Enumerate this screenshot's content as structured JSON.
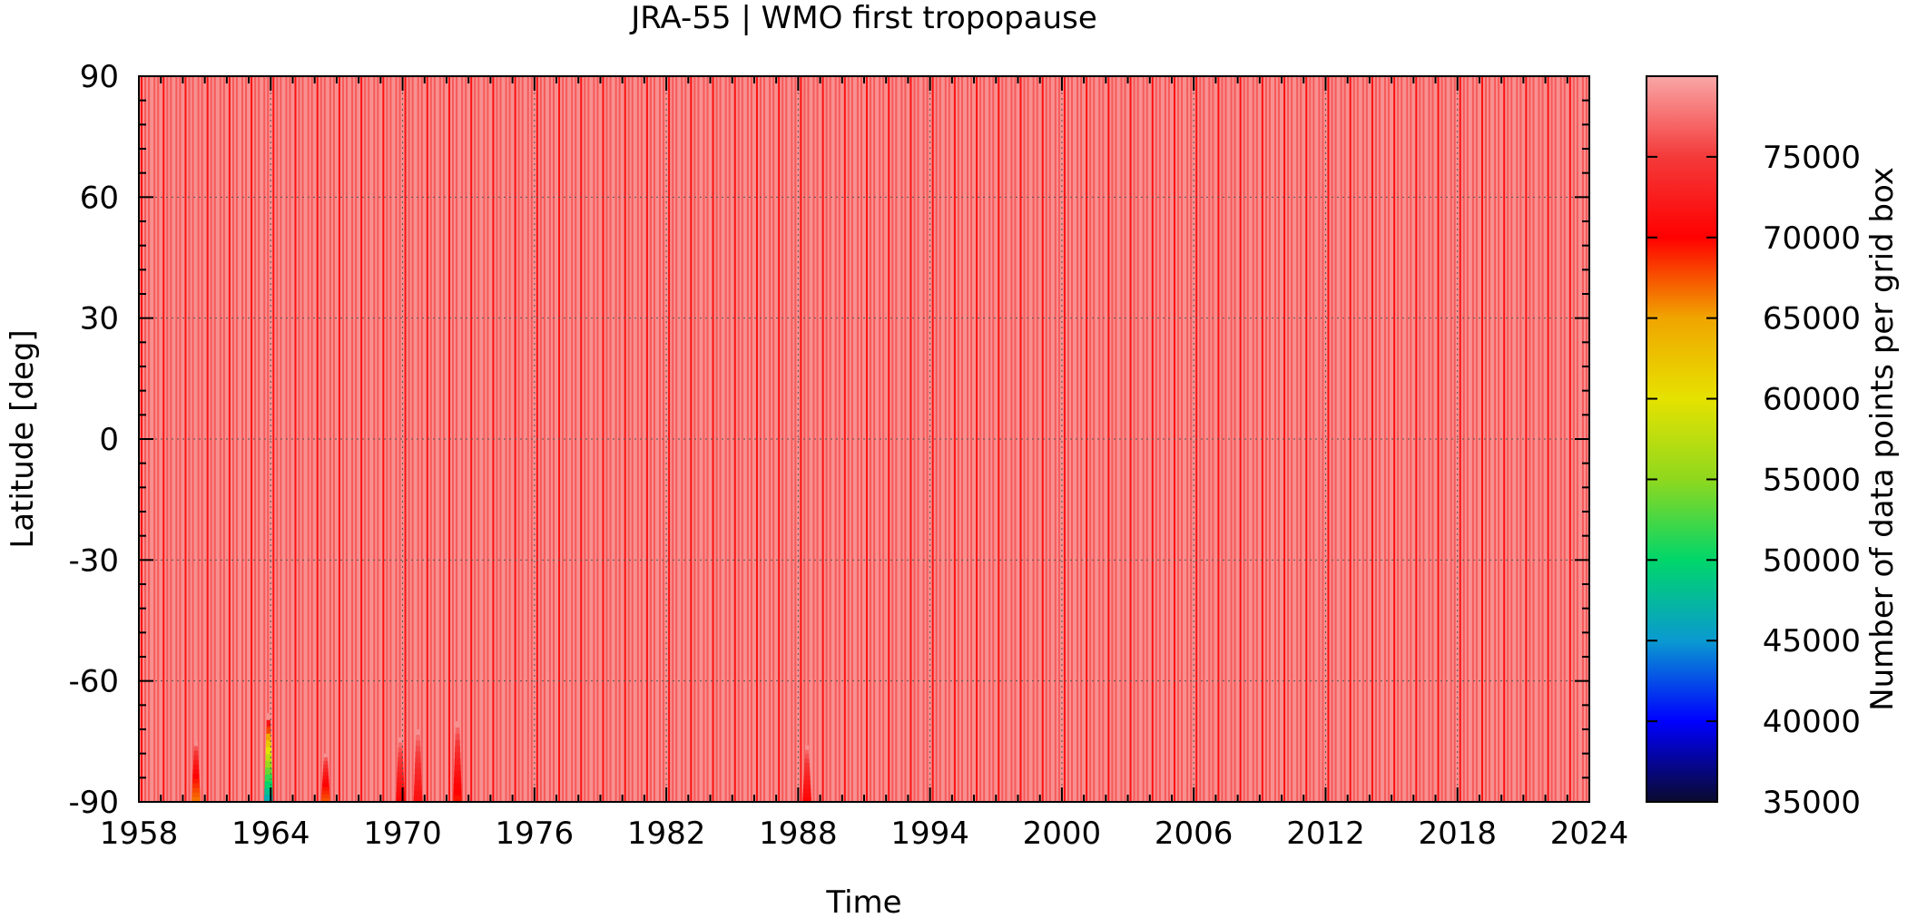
{
  "chart_data": {
    "type": "heatmap",
    "title": "JRA-55 | WMO first tropopause",
    "xlabel": "Time",
    "ylabel": "Latitude [deg]",
    "colorbar_label": "Number of data points per grid box",
    "xlim": [
      1958,
      2024
    ],
    "ylim": [
      -90,
      90
    ],
    "x_ticks": [
      "1958",
      "1964",
      "1970",
      "1976",
      "1982",
      "1988",
      "1994",
      "2000",
      "2006",
      "2012",
      "2018",
      "2024"
    ],
    "y_ticks": [
      "90",
      "60",
      "30",
      "0",
      "-30",
      "-60",
      "-90"
    ],
    "colorbar_range": [
      35000,
      80000
    ],
    "colorbar_ticks": [
      "75000",
      "70000",
      "65000",
      "60000",
      "55000",
      "50000",
      "45000",
      "40000",
      "35000"
    ],
    "colormap": [
      "#0a0a2e",
      "#0000ff",
      "#0a9ad0",
      "#00d66a",
      "#8fd81e",
      "#e6e200",
      "#f0a500",
      "#ff0000",
      "#f43a3a",
      "#f9a6a6"
    ],
    "grid": true,
    "typical_values": {
      "months_31_days": 79000,
      "months_30_days": 76500,
      "february": 71500
    },
    "anomalies": [
      {
        "time": 1960.6,
        "lat_top": -75,
        "min_value": 66000
      },
      {
        "time": 1963.9,
        "lat_top": -68,
        "min_value": 45000
      },
      {
        "time": 1966.5,
        "lat_top": -78,
        "min_value": 67000
      },
      {
        "time": 1969.9,
        "lat_top": -74,
        "min_value": 70000
      },
      {
        "time": 1970.7,
        "lat_top": -72,
        "min_value": 71000
      },
      {
        "time": 1972.5,
        "lat_top": -70,
        "min_value": 69000
      },
      {
        "time": 1988.4,
        "lat_top": -76,
        "min_value": 70000
      }
    ]
  }
}
